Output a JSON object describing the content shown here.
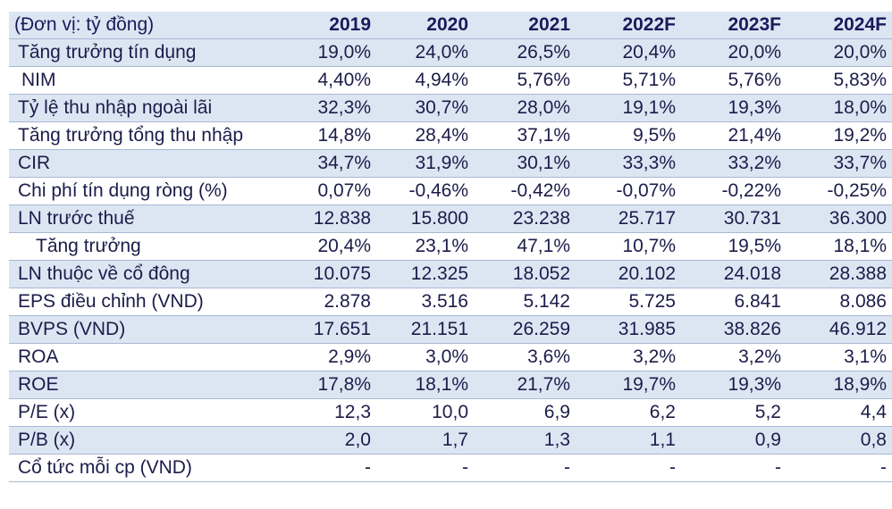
{
  "table": {
    "unit_label": "(Đơn vị: tỷ đồng)",
    "years": [
      "2019",
      "2020",
      "2021",
      "2022F",
      "2023F",
      "2024F"
    ],
    "rows": [
      {
        "label": "Tăng trưởng tín dụng",
        "values": [
          "19,0%",
          "24,0%",
          "26,5%",
          "20,4%",
          "20,0%",
          "20,0%"
        ]
      },
      {
        "label": "NIM",
        "values": [
          "4,40%",
          "4,94%",
          "5,76%",
          "5,71%",
          "5,76%",
          "5,83%"
        ]
      },
      {
        "label": "Tỷ lệ thu nhập ngoài lãi",
        "values": [
          "32,3%",
          "30,7%",
          "28,0%",
          "19,1%",
          "19,3%",
          "18,0%"
        ]
      },
      {
        "label": "Tăng trưởng tổng thu nhập",
        "values": [
          "14,8%",
          "28,4%",
          "37,1%",
          "9,5%",
          "21,4%",
          "19,2%"
        ]
      },
      {
        "label": "CIR",
        "values": [
          "34,7%",
          "31,9%",
          "30,1%",
          "33,3%",
          "33,2%",
          "33,7%"
        ]
      },
      {
        "label": "Chi phí tín dụng ròng (%)",
        "values": [
          "0,07%",
          "-0,46%",
          "-0,42%",
          "-0,07%",
          "-0,22%",
          "-0,25%"
        ]
      },
      {
        "label": "LN trước thuế",
        "values": [
          "12.838",
          "15.800",
          "23.238",
          "25.717",
          "30.731",
          "36.300"
        ]
      },
      {
        "label": "Tăng trưởng",
        "values": [
          "20,4%",
          "23,1%",
          "47,1%",
          "10,7%",
          "19,5%",
          "18,1%"
        ]
      },
      {
        "label": "LN thuộc về cổ đông",
        "values": [
          "10.075",
          "12.325",
          "18.052",
          "20.102",
          "24.018",
          "28.388"
        ]
      },
      {
        "label": "EPS điều chỉnh (VND)",
        "values": [
          "2.878",
          "3.516",
          "5.142",
          "5.725",
          "6.841",
          "8.086"
        ]
      },
      {
        "label": "BVPS (VND)",
        "values": [
          "17.651",
          "21.151",
          "26.259",
          "31.985",
          "38.826",
          "46.912"
        ]
      },
      {
        "label": "ROA",
        "values": [
          "2,9%",
          "3,0%",
          "3,6%",
          "3,2%",
          "3,2%",
          "3,1%"
        ]
      },
      {
        "label": "ROE",
        "values": [
          "17,8%",
          "18,1%",
          "21,7%",
          "19,7%",
          "19,3%",
          "18,9%"
        ]
      },
      {
        "label": "P/E (x)",
        "values": [
          "12,3",
          "10,0",
          "6,9",
          "6,2",
          "5,2",
          "4,4"
        ]
      },
      {
        "label": "P/B (x)",
        "values": [
          "2,0",
          "1,7",
          "1,3",
          "1,1",
          "0,9",
          "0,8"
        ]
      },
      {
        "label": "Cổ tức mỗi cp (VND)",
        "values": [
          "-",
          "-",
          "-",
          "-",
          "-",
          "-"
        ]
      }
    ]
  },
  "colors": {
    "shaded_row": "#dce6f3",
    "text": "#1c1c4a",
    "rule": "#a9b8d4"
  }
}
